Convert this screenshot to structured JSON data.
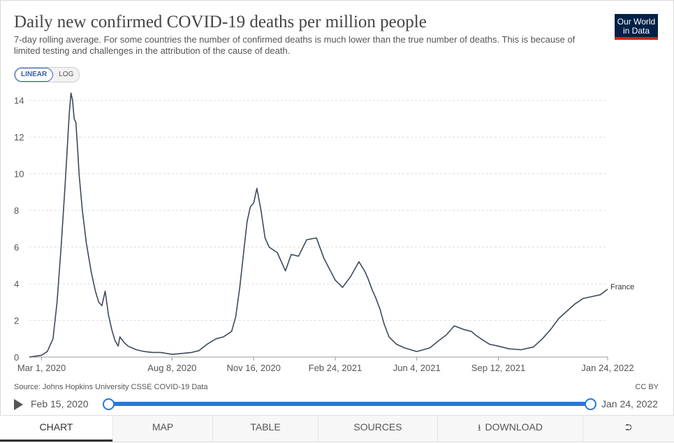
{
  "header": {
    "title": "Daily new confirmed COVID-19 deaths per million people",
    "subtitle": "7-day rolling average. For some countries the number of confirmed deaths is much lower than the true number of deaths. This is because of limited testing and challenges in the attribution of the cause of death.",
    "logo_line1": "Our World",
    "logo_line2": "in Data",
    "logo_colors": {
      "background": "#002147",
      "accent": "#ce261e"
    }
  },
  "scale": {
    "linear": "LINEAR",
    "log": "LOG",
    "selected": "linear"
  },
  "footer": {
    "source": "Source: Johns Hopkins University CSSE COVID-19 Data",
    "license": "CC BY"
  },
  "timeline": {
    "start": "Feb 15, 2020",
    "end": "Jan 24, 2022"
  },
  "tabs": {
    "chart": "CHART",
    "map": "MAP",
    "table": "TABLE",
    "sources": "SOURCES",
    "download": "DOWNLOAD"
  },
  "icons": {
    "play": "play-icon",
    "download": "download-icon",
    "share": "share-icon"
  },
  "chart_data": {
    "type": "line",
    "title": "Daily new confirmed COVID-19 deaths per million people",
    "xlabel": "",
    "ylabel": "",
    "x_domain": [
      "2020-02-15",
      "2022-01-24"
    ],
    "ylim": [
      0,
      14.6
    ],
    "y_ticks": [
      0,
      2,
      4,
      6,
      8,
      10,
      12,
      14
    ],
    "y_tick_labels": [
      "0",
      "2",
      "4",
      "6",
      "8",
      "10",
      "12",
      "14"
    ],
    "x_ticks": [
      "2020-03-01",
      "2020-08-08",
      "2020-11-16",
      "2021-02-24",
      "2021-06-04",
      "2021-09-12",
      "2022-01-24"
    ],
    "x_tick_labels": [
      "Mar 1, 2020",
      "Aug 8, 2020",
      "Nov 16, 2020",
      "Feb 24, 2021",
      "Jun 4, 2021",
      "Sep 12, 2021",
      "Jan 24, 2022"
    ],
    "grid": "horizontal dashed",
    "line_color": "#3d4a5c",
    "series": [
      {
        "name": "France",
        "x": [
          "2020-02-15",
          "2020-03-01",
          "2020-03-08",
          "2020-03-15",
          "2020-03-20",
          "2020-03-25",
          "2020-03-30",
          "2020-04-04",
          "2020-04-06",
          "2020-04-08",
          "2020-04-10",
          "2020-04-12",
          "2020-04-14",
          "2020-04-16",
          "2020-04-20",
          "2020-04-25",
          "2020-05-01",
          "2020-05-06",
          "2020-05-10",
          "2020-05-14",
          "2020-05-18",
          "2020-05-22",
          "2020-05-26",
          "2020-05-30",
          "2020-06-03",
          "2020-06-05",
          "2020-06-10",
          "2020-06-15",
          "2020-06-20",
          "2020-06-25",
          "2020-07-05",
          "2020-07-15",
          "2020-07-25",
          "2020-08-08",
          "2020-08-20",
          "2020-09-01",
          "2020-09-10",
          "2020-09-20",
          "2020-10-01",
          "2020-10-10",
          "2020-10-20",
          "2020-10-25",
          "2020-10-30",
          "2020-11-04",
          "2020-11-08",
          "2020-11-12",
          "2020-11-16",
          "2020-11-20",
          "2020-11-25",
          "2020-11-30",
          "2020-12-05",
          "2020-12-15",
          "2020-12-25",
          "2021-01-01",
          "2021-01-10",
          "2021-01-20",
          "2021-02-01",
          "2021-02-10",
          "2021-02-24",
          "2021-03-05",
          "2021-03-15",
          "2021-03-25",
          "2021-04-01",
          "2021-04-05",
          "2021-04-10",
          "2021-04-15",
          "2021-04-20",
          "2021-04-25",
          "2021-05-01",
          "2021-05-10",
          "2021-05-20",
          "2021-06-04",
          "2021-06-20",
          "2021-07-01",
          "2021-07-10",
          "2021-07-20",
          "2021-08-01",
          "2021-08-10",
          "2021-08-15",
          "2021-08-25",
          "2021-09-01",
          "2021-09-12",
          "2021-09-25",
          "2021-10-10",
          "2021-10-25",
          "2021-11-05",
          "2021-11-15",
          "2021-11-25",
          "2021-12-05",
          "2021-12-15",
          "2021-12-25",
          "2022-01-05",
          "2022-01-15",
          "2022-01-24"
        ],
        "values": [
          0,
          0.1,
          0.3,
          1,
          3,
          6,
          9.5,
          13.3,
          14.4,
          14,
          13,
          12.8,
          11.5,
          10,
          8,
          6.2,
          4.6,
          3.6,
          3,
          2.8,
          3.6,
          2.3,
          1.5,
          0.9,
          0.6,
          1.1,
          0.8,
          0.6,
          0.5,
          0.4,
          0.3,
          0.25,
          0.25,
          0.15,
          0.2,
          0.25,
          0.35,
          0.7,
          1,
          1.1,
          1.4,
          2.2,
          3.8,
          5.8,
          7.4,
          8.2,
          8.4,
          9.2,
          8,
          6.5,
          6,
          5.7,
          4.7,
          5.6,
          5.5,
          6.4,
          6.5,
          5.4,
          4.2,
          3.8,
          4.4,
          5.2,
          4.7,
          4.3,
          3.7,
          3.2,
          2.6,
          1.8,
          1.1,
          0.7,
          0.5,
          0.3,
          0.5,
          0.9,
          1.2,
          1.7,
          1.5,
          1.4,
          1.2,
          0.9,
          0.7,
          0.6,
          0.45,
          0.4,
          0.55,
          1,
          1.5,
          2.1,
          2.5,
          2.9,
          3.2,
          3.3,
          3.4,
          3.7
        ]
      }
    ]
  }
}
